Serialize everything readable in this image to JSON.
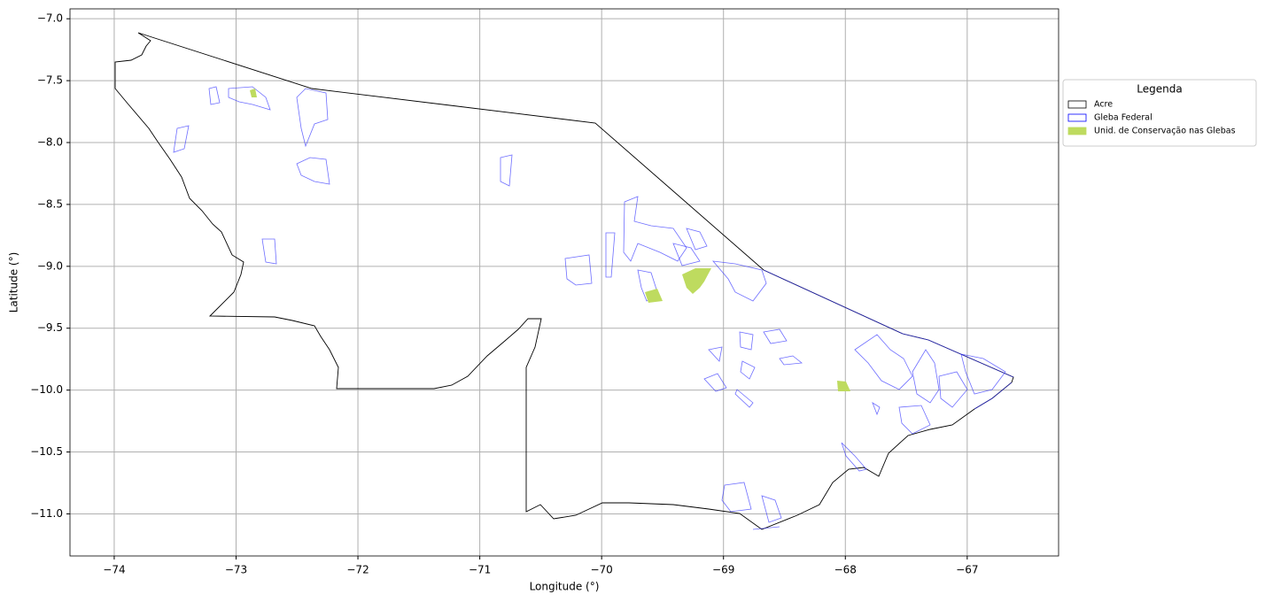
{
  "chart_data": {
    "type": "map",
    "xlabel": "Longitude (°)",
    "ylabel": "Latitude (°)",
    "xlim": [
      -74.363,
      -66.25
    ],
    "ylim": [
      -11.34,
      -6.92
    ],
    "xticks": [
      {
        "value": -74,
        "label": "−74"
      },
      {
        "value": -73,
        "label": "−73"
      },
      {
        "value": -72,
        "label": "−72"
      },
      {
        "value": -71,
        "label": "−71"
      },
      {
        "value": -70,
        "label": "−70"
      },
      {
        "value": -69,
        "label": "−69"
      },
      {
        "value": -68,
        "label": "−68"
      },
      {
        "value": -67,
        "label": "−67"
      }
    ],
    "yticks": [
      {
        "value": -7.0,
        "label": "−7.0"
      },
      {
        "value": -7.5,
        "label": "−7.5"
      },
      {
        "value": -8.0,
        "label": "−8.0"
      },
      {
        "value": -8.5,
        "label": "−8.5"
      },
      {
        "value": -9.0,
        "label": "−9.0"
      },
      {
        "value": -9.5,
        "label": "−9.5"
      },
      {
        "value": -10.0,
        "label": "−10.0"
      },
      {
        "value": -10.5,
        "label": "−10.5"
      },
      {
        "value": -11.0,
        "label": "−11.0"
      }
    ],
    "grid": true,
    "legend": {
      "title": "Legenda",
      "location": "right",
      "entries": [
        {
          "name": "Acre",
          "edgecolor": "#000000",
          "facecolor": "#ffffff"
        },
        {
          "name": "Gleba Federal",
          "edgecolor": "#0000ff",
          "facecolor": "#ffffff"
        },
        {
          "name": "Unid. de Conservação nas Glebas",
          "edgecolor": "#bedb5f",
          "facecolor": "#bedb5f"
        }
      ]
    }
  }
}
